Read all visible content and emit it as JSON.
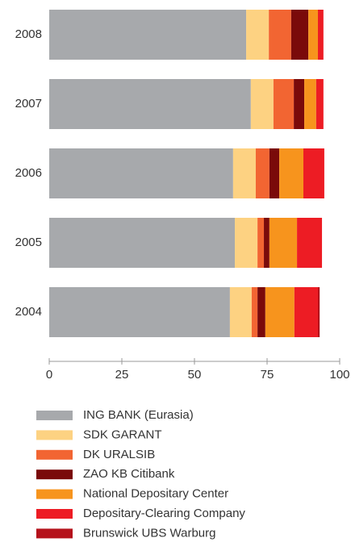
{
  "chart_data": {
    "type": "stacked-barh",
    "categories": [
      "2008",
      "2007",
      "2006",
      "2005",
      "2004"
    ],
    "series": [
      {
        "name": "ING BANK (Eurasia)",
        "color": "#a7a9ac",
        "values": [
          67.8,
          69.4,
          63.3,
          63.9,
          62.2
        ]
      },
      {
        "name": "SDK GARANT",
        "color": "#fdd282",
        "values": [
          7.8,
          7.8,
          7.8,
          7.8,
          7.5
        ]
      },
      {
        "name": "DK URALSIB",
        "color": "#f26532",
        "values": [
          7.7,
          7.0,
          4.7,
          2.2,
          2.0
        ]
      },
      {
        "name": "ZAO KB Citibank",
        "color": "#7a0a0a",
        "values": [
          5.9,
          3.6,
          3.4,
          1.9,
          2.7
        ]
      },
      {
        "name": "National Depositary Center",
        "color": "#f7941d",
        "values": [
          3.3,
          4.1,
          8.3,
          9.5,
          10.0
        ]
      },
      {
        "name": "Depositary-Clearing Company",
        "color": "#ed1c24",
        "values": [
          1.9,
          2.5,
          7.2,
          8.6,
          8.1
        ]
      },
      {
        "name": "Brunswick UBS Warburg",
        "color": "#b5121b",
        "values": [
          0,
          0,
          0,
          0,
          0.6
        ]
      }
    ],
    "xlim": [
      0,
      100
    ],
    "xticks": [
      0,
      25,
      50,
      75,
      100
    ],
    "grid": false
  }
}
